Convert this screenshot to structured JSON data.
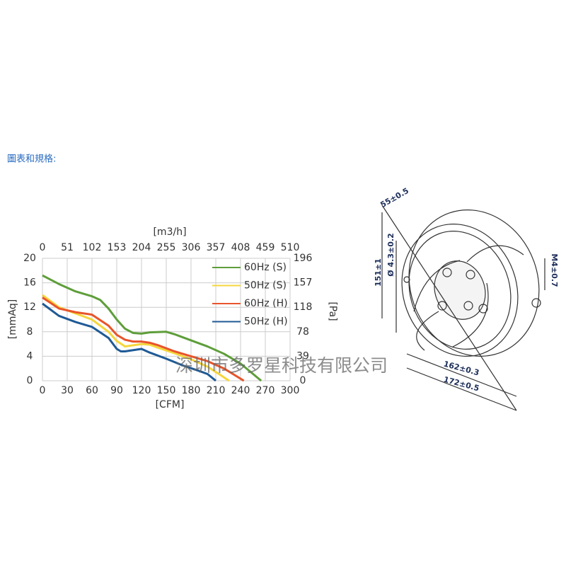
{
  "heading": "圖表和規格:",
  "chart_data": {
    "type": "line",
    "x_label": "[CFM]",
    "x2_label": "[m3/h]",
    "y_label": "[mmAq]",
    "y2_label": "[Pa]",
    "xlim": [
      0,
      300
    ],
    "xticks": [
      0,
      30,
      60,
      90,
      120,
      150,
      180,
      210,
      240,
      270,
      300
    ],
    "x2lim": [
      0,
      510
    ],
    "x2ticks": [
      0,
      51,
      102,
      153,
      204,
      255,
      306,
      357,
      408,
      459,
      510
    ],
    "ylim": [
      0,
      20
    ],
    "yticks": [
      0,
      4,
      8,
      12,
      16,
      20
    ],
    "y2lim": [
      0,
      196
    ],
    "y2ticks": [
      0,
      39,
      78,
      118,
      157,
      196
    ],
    "grid": true,
    "legend": "upper right",
    "series": [
      {
        "name": "60Hz (S)",
        "color": "#5e9e3a",
        "x": [
          0,
          20,
          40,
          60,
          70,
          80,
          90,
          100,
          110,
          120,
          130,
          150,
          160,
          180,
          200,
          220,
          240,
          265
        ],
        "values": [
          17.2,
          15.8,
          14.6,
          13.8,
          13.2,
          11.8,
          10,
          8.5,
          7.8,
          7.7,
          7.9,
          8.0,
          7.6,
          6.6,
          5.6,
          4.4,
          2.8,
          0
        ]
      },
      {
        "name": "50Hz (S)",
        "color": "#f5d63c",
        "x": [
          0,
          20,
          40,
          60,
          80,
          90,
          100,
          110,
          120,
          130,
          140,
          160,
          180,
          200,
          215,
          226
        ],
        "values": [
          14,
          12,
          11,
          10,
          8.0,
          6.5,
          5.6,
          5.8,
          6.0,
          5.9,
          5.4,
          4.5,
          3.5,
          2.3,
          1.0,
          0
        ]
      },
      {
        "name": "60Hz (H)",
        "color": "#e8542a",
        "x": [
          0,
          20,
          40,
          60,
          80,
          90,
          100,
          110,
          120,
          130,
          140,
          160,
          180,
          200,
          220,
          244
        ],
        "values": [
          13.6,
          11.8,
          11.2,
          10.8,
          9.0,
          7.5,
          6.7,
          6.4,
          6.4,
          6.2,
          5.8,
          4.8,
          4.0,
          3.2,
          2.0,
          0
        ]
      },
      {
        "name": "50Hz (H)",
        "color": "#1f5a96",
        "x": [
          0,
          20,
          40,
          60,
          80,
          90,
          95,
          100,
          110,
          120,
          130,
          150,
          170,
          190,
          200,
          210
        ],
        "values": [
          12.6,
          10.6,
          9.6,
          8.8,
          7.0,
          5.2,
          4.8,
          4.8,
          5.0,
          5.2,
          4.6,
          3.6,
          2.5,
          1.6,
          1.1,
          0
        ]
      }
    ]
  },
  "drawing": {
    "dimensions": [
      "55±0.5",
      "151±1",
      "Ø 4.3±0.2",
      "M4±0.7",
      "162±0.3",
      "172±0.5"
    ]
  },
  "watermark": "深圳市多罗星科技有限公司"
}
